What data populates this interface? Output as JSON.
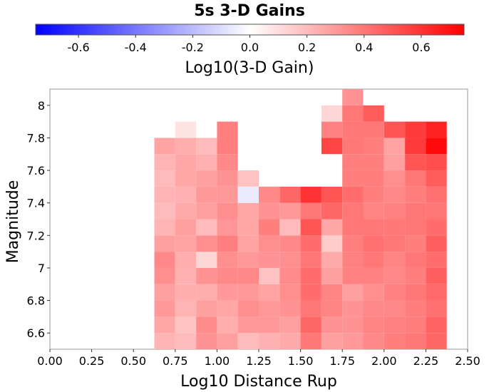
{
  "chart_data": {
    "type": "heatmap",
    "title": "5s 3-D Gains",
    "xlabel": "Log10 Distance Rup",
    "ylabel": "Magnitude",
    "xlim": [
      0,
      2.5
    ],
    "ylim": [
      6.5,
      8.1
    ],
    "x_ticks": [
      "0.00",
      "0.25",
      "0.50",
      "0.75",
      "1.00",
      "1.25",
      "1.50",
      "1.75",
      "2.00",
      "2.25",
      "2.50"
    ],
    "y_ticks": [
      "6.6",
      "6.8",
      "7",
      "7.2",
      "7.4",
      "7.6",
      "7.8",
      "8"
    ],
    "colorbar": {
      "label": "Log10(3-D Gain)",
      "range": [
        -0.75,
        0.75
      ],
      "tick_labels": [
        "-0.6",
        "-0.4",
        "-0.2",
        "0.0",
        "0.2",
        "0.4",
        "0.6"
      ],
      "low_color": "#0000ff",
      "mid_color": "#ffffff",
      "high_color": "#ff0000"
    },
    "cell_size": {
      "dx": 0.125,
      "dy": 0.1
    },
    "x_centers": [
      0.6875,
      0.8125,
      0.9375,
      1.0625,
      1.1875,
      1.3125,
      1.4375,
      1.5625,
      1.6875,
      1.8125,
      1.9375,
      2.0625,
      2.1875,
      2.3125
    ],
    "rows": [
      {
        "magnitude": 6.55,
        "values": [
          0.22,
          0.2,
          0.32,
          0.28,
          0.2,
          0.23,
          0.25,
          0.4,
          0.28,
          0.3,
          0.35,
          0.38,
          0.4,
          0.45
        ]
      },
      {
        "magnitude": 6.65,
        "values": [
          0.26,
          0.18,
          0.34,
          0.24,
          0.3,
          0.3,
          0.28,
          0.45,
          0.32,
          0.32,
          0.36,
          0.37,
          0.38,
          0.46
        ]
      },
      {
        "magnitude": 6.75,
        "values": [
          0.3,
          0.22,
          0.28,
          0.26,
          0.33,
          0.3,
          0.32,
          0.4,
          0.36,
          0.32,
          0.35,
          0.35,
          0.38,
          0.42
        ]
      },
      {
        "magnitude": 6.85,
        "values": [
          0.28,
          0.24,
          0.24,
          0.3,
          0.3,
          0.27,
          0.33,
          0.43,
          0.36,
          0.28,
          0.33,
          0.37,
          0.4,
          0.44
        ]
      },
      {
        "magnitude": 6.95,
        "values": [
          0.33,
          0.23,
          0.32,
          0.35,
          0.35,
          0.18,
          0.34,
          0.43,
          0.28,
          0.37,
          0.37,
          0.35,
          0.38,
          0.47
        ]
      },
      {
        "magnitude": 7.05,
        "values": [
          0.35,
          0.24,
          0.12,
          0.33,
          0.3,
          0.32,
          0.33,
          0.4,
          0.25,
          0.37,
          0.4,
          0.36,
          0.4,
          0.43
        ]
      },
      {
        "magnitude": 7.15,
        "values": [
          0.28,
          0.27,
          0.33,
          0.38,
          0.27,
          0.33,
          0.35,
          0.43,
          0.15,
          0.38,
          0.42,
          0.4,
          0.38,
          0.47
        ]
      },
      {
        "magnitude": 7.25,
        "values": [
          0.22,
          0.28,
          0.2,
          0.31,
          0.26,
          0.38,
          0.2,
          0.5,
          0.26,
          0.4,
          0.4,
          0.4,
          0.4,
          0.43
        ]
      },
      {
        "magnitude": 7.35,
        "values": [
          0.2,
          0.25,
          0.28,
          0.33,
          0.26,
          0.32,
          0.3,
          0.4,
          0.45,
          0.4,
          0.36,
          0.37,
          0.4,
          0.4
        ]
      },
      {
        "magnitude": 7.45,
        "values": [
          0.22,
          0.23,
          0.3,
          0.3,
          -0.06,
          0.35,
          0.45,
          0.6,
          0.5,
          0.43,
          0.38,
          0.35,
          0.38,
          0.42
        ]
      },
      {
        "magnitude": 7.55,
        "values": [
          0.2,
          0.26,
          0.28,
          0.32,
          0.18,
          null,
          null,
          null,
          null,
          0.38,
          0.38,
          0.33,
          0.4,
          0.48
        ]
      },
      {
        "magnitude": 7.65,
        "values": [
          0.22,
          0.26,
          0.23,
          0.35,
          null,
          null,
          null,
          null,
          null,
          0.38,
          0.38,
          0.28,
          0.5,
          0.52
        ]
      },
      {
        "magnitude": 7.75,
        "values": [
          0.27,
          0.24,
          0.2,
          0.38,
          null,
          null,
          null,
          null,
          0.55,
          0.4,
          0.38,
          0.27,
          0.58,
          0.72
        ]
      },
      {
        "magnitude": 7.85,
        "values": [
          null,
          0.08,
          null,
          0.38,
          null,
          null,
          null,
          null,
          0.37,
          0.4,
          0.4,
          0.5,
          0.58,
          0.65
        ]
      },
      {
        "magnitude": 7.95,
        "values": [
          null,
          null,
          null,
          null,
          null,
          null,
          null,
          null,
          0.12,
          0.4,
          0.48,
          null,
          null,
          null
        ]
      },
      {
        "magnitude": 8.05,
        "values": [
          null,
          null,
          null,
          null,
          null,
          null,
          null,
          null,
          null,
          0.32,
          null,
          null,
          null,
          null
        ]
      }
    ]
  }
}
